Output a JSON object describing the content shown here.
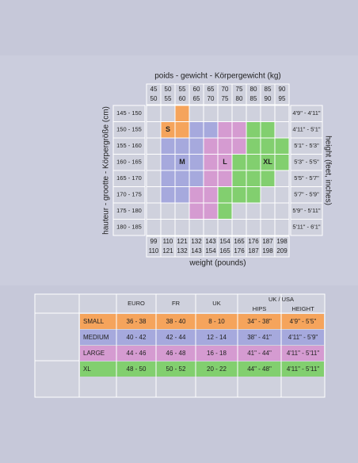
{
  "weight_grid": {
    "title": "poids - gewicht - Körpergewicht (kg)",
    "bottom_title": "weight (pounds)",
    "left_title": "hauteur - grootte - Körpergröße (cm)",
    "right_title": "height (feet, inches)",
    "kg_columns": [
      [
        "45",
        "50"
      ],
      [
        "50",
        "55"
      ],
      [
        "55",
        "60"
      ],
      [
        "60",
        "65"
      ],
      [
        "65",
        "70"
      ],
      [
        "70",
        "75"
      ],
      [
        "75",
        "80"
      ],
      [
        "80",
        "85"
      ],
      [
        "85",
        "90"
      ],
      [
        "90",
        "95"
      ]
    ],
    "lb_columns": [
      [
        "99",
        "110"
      ],
      [
        "110",
        "121"
      ],
      [
        "121",
        "132"
      ],
      [
        "132",
        "143"
      ],
      [
        "143",
        "154"
      ],
      [
        "154",
        "165"
      ],
      [
        "165",
        "176"
      ],
      [
        "176",
        "187"
      ],
      [
        "187",
        "198"
      ],
      [
        "198",
        "209"
      ]
    ],
    "cm_rows": [
      "145 - 150",
      "150 - 155",
      "155 - 160",
      "160 - 165",
      "165 - 170",
      "170 - 175",
      "175 - 180",
      "180 - 185"
    ],
    "ft_rows": [
      "4'9\" - 4'11\"",
      "4'11\" - 5'1\"",
      "5'1\" - 5'3\"",
      "5'3\" - 5'5\"",
      "5'5\" - 5'7\"",
      "5'7\" - 5'9\"",
      "5'9\" - 5'11\"",
      "5'11\" - 6'1\""
    ],
    "size_labels": [
      "S",
      "M",
      "L",
      "XL"
    ]
  },
  "size_table": {
    "headers": [
      "EURO",
      "FR",
      "UK"
    ],
    "group_header": "UK / USA",
    "sub_headers": [
      "HIPS",
      "HEIGHT"
    ],
    "rows": [
      {
        "size": "SMALL",
        "values": [
          "36 - 38",
          "38 - 40",
          "8 - 10",
          "34\" - 38\"",
          "4'9\" - 5'5\""
        ]
      },
      {
        "size": "MEDIUM",
        "values": [
          "40 - 42",
          "42 - 44",
          "12 - 14",
          "38\" - 41\"",
          "4'11\" - 5'9\""
        ]
      },
      {
        "size": "LARGE",
        "values": [
          "44 - 46",
          "46 - 48",
          "16 - 18",
          "41\" - 44\"",
          "4'11\" - 5'11\""
        ]
      },
      {
        "size": "XL",
        "values": [
          "48 - 50",
          "50 - 52",
          "20 - 22",
          "44\" - 48\"",
          "4'11\" - 5'11\""
        ]
      }
    ]
  }
}
